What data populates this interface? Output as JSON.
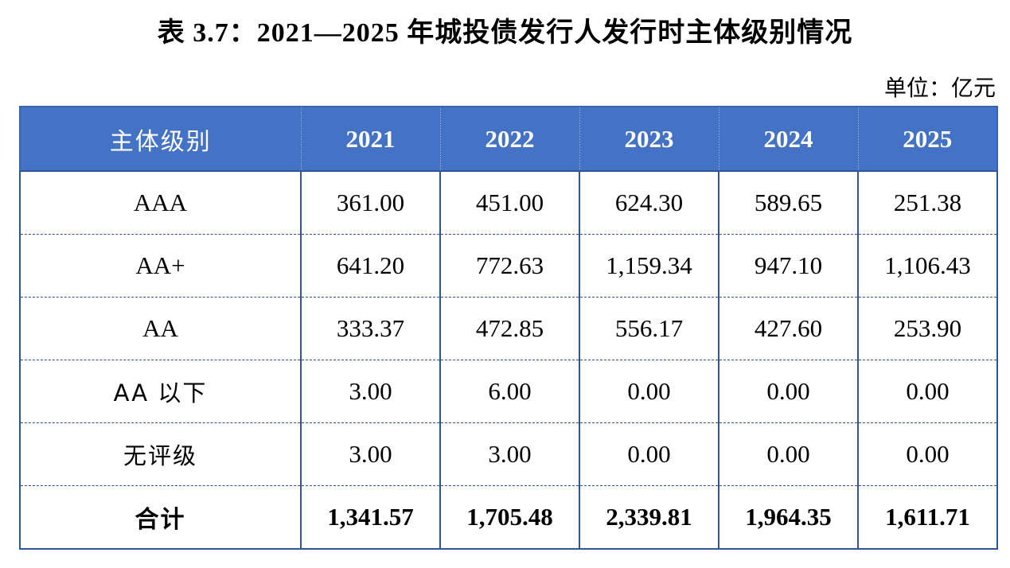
{
  "title": "表 3.7：2021—2025 年城投债发行人发行时主体级别情况",
  "unit": "单位：亿元",
  "table": {
    "headers": [
      "主体级别",
      "2021",
      "2022",
      "2023",
      "2024",
      "2025"
    ],
    "rows": [
      {
        "label": "AAA",
        "values": [
          "361.00",
          "451.00",
          "624.30",
          "589.65",
          "251.38"
        ]
      },
      {
        "label": "AA+",
        "values": [
          "641.20",
          "772.63",
          "1,159.34",
          "947.10",
          "1,106.43"
        ]
      },
      {
        "label": "AA",
        "values": [
          "333.37",
          "472.85",
          "556.17",
          "427.60",
          "253.90"
        ]
      },
      {
        "label": "AA 以下",
        "values": [
          "3.00",
          "6.00",
          "0.00",
          "0.00",
          "0.00"
        ]
      },
      {
        "label": "无评级",
        "values": [
          "3.00",
          "3.00",
          "0.00",
          "0.00",
          "0.00"
        ]
      }
    ],
    "total": {
      "label": "合计",
      "values": [
        "1,341.57",
        "1,705.48",
        "2,339.81",
        "1,964.35",
        "1,611.71"
      ]
    }
  },
  "colors": {
    "header_bg": "#4472c4",
    "header_text": "#ffffff",
    "border": "#2f5597"
  }
}
